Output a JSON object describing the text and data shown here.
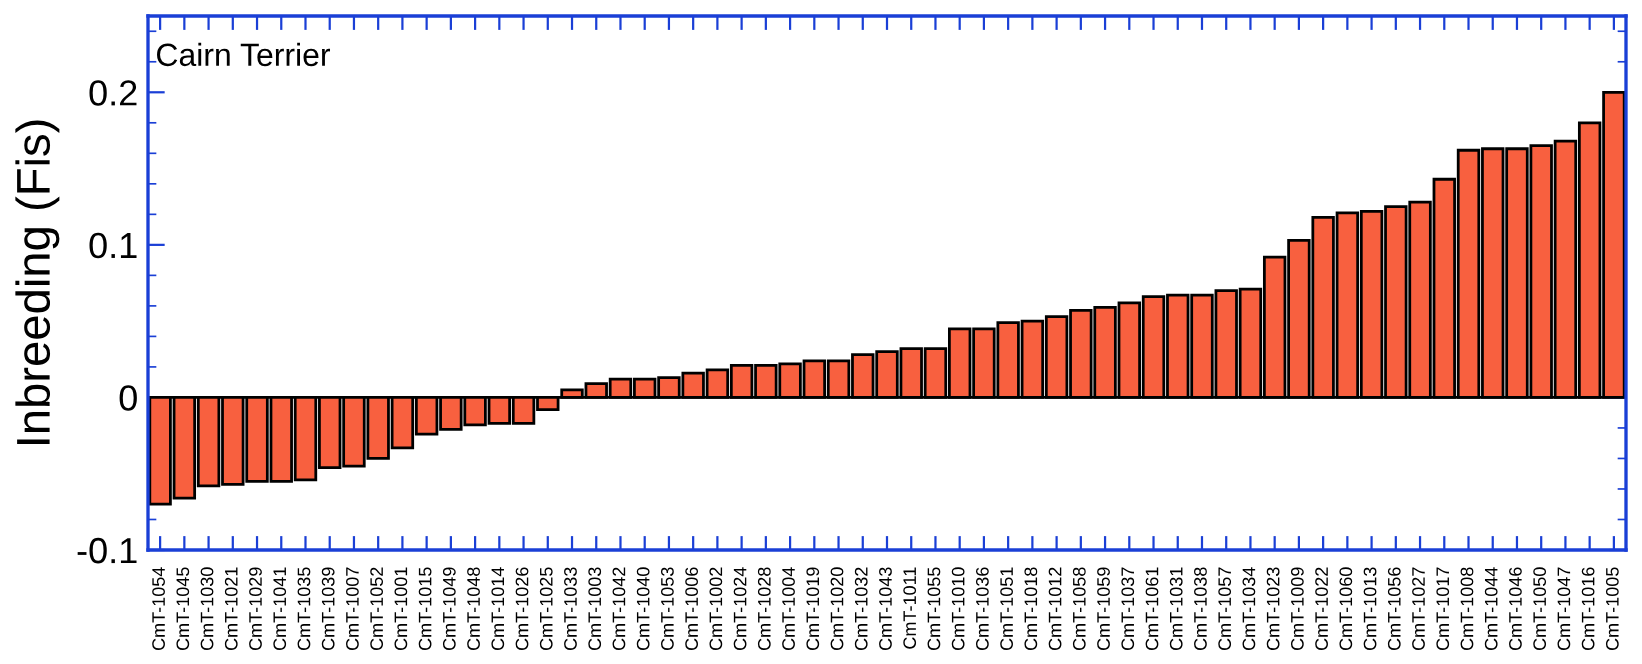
{
  "chart_data": {
    "type": "bar",
    "title": "Cairn Terrier",
    "ylabel": "Inbreeding (Fis)",
    "categories": [
      "CmT-1054",
      "CmT-1045",
      "CmT-1030",
      "CmT-1021",
      "CmT-1029",
      "CmT-1041",
      "CmT-1035",
      "CmT-1039",
      "CmT-1007",
      "CmT-1052",
      "CmT-1001",
      "CmT-1015",
      "CmT-1049",
      "CmT-1048",
      "CmT-1014",
      "CmT-1026",
      "CmT-1025",
      "CmT-1033",
      "CmT-1003",
      "CmT-1042",
      "CmT-1040",
      "CmT-1053",
      "CmT-1006",
      "CmT-1002",
      "CmT-1024",
      "CmT-1028",
      "CmT-1004",
      "CmT-1019",
      "CmT-1020",
      "CmT-1032",
      "CmT-1043",
      "CmT-1011",
      "CmT-1055",
      "CmT-1010",
      "CmT-1036",
      "CmT-1051",
      "CmT-1018",
      "CmT-1012",
      "CmT-1058",
      "CmT-1059",
      "CmT-1037",
      "CmT-1061",
      "CmT-1031",
      "CmT-1038",
      "CmT-1057",
      "CmT-1034",
      "CmT-1023",
      "CmT-1009",
      "CmT-1022",
      "CmT-1060",
      "CmT-1013",
      "CmT-1056",
      "CmT-1027",
      "CmT-1017",
      "CmT-1008",
      "CmT-1044",
      "CmT-1046",
      "CmT-1050",
      "CmT-1047",
      "CmT-1016",
      "CmT-1005"
    ],
    "values": [
      -0.07,
      -0.066,
      -0.058,
      -0.057,
      -0.055,
      -0.055,
      -0.054,
      -0.046,
      -0.045,
      -0.04,
      -0.033,
      -0.024,
      -0.021,
      -0.018,
      -0.017,
      -0.017,
      -0.008,
      0.005,
      0.009,
      0.012,
      0.012,
      0.013,
      0.016,
      0.018,
      0.021,
      0.021,
      0.022,
      0.024,
      0.024,
      0.028,
      0.03,
      0.032,
      0.032,
      0.045,
      0.045,
      0.049,
      0.05,
      0.053,
      0.057,
      0.059,
      0.062,
      0.066,
      0.067,
      0.067,
      0.07,
      0.071,
      0.092,
      0.103,
      0.118,
      0.121,
      0.122,
      0.125,
      0.128,
      0.143,
      0.162,
      0.163,
      0.163,
      0.165,
      0.168,
      0.18,
      0.2
    ],
    "color": "#f8603f",
    "ylim": [
      -0.1,
      0.25
    ],
    "yticks": [
      -0.1,
      0,
      0.1,
      0.2
    ],
    "ref_lines": [
      {
        "axis": "y",
        "value": 0,
        "color": "#000000"
      }
    ],
    "grid": false,
    "legend": false
  }
}
